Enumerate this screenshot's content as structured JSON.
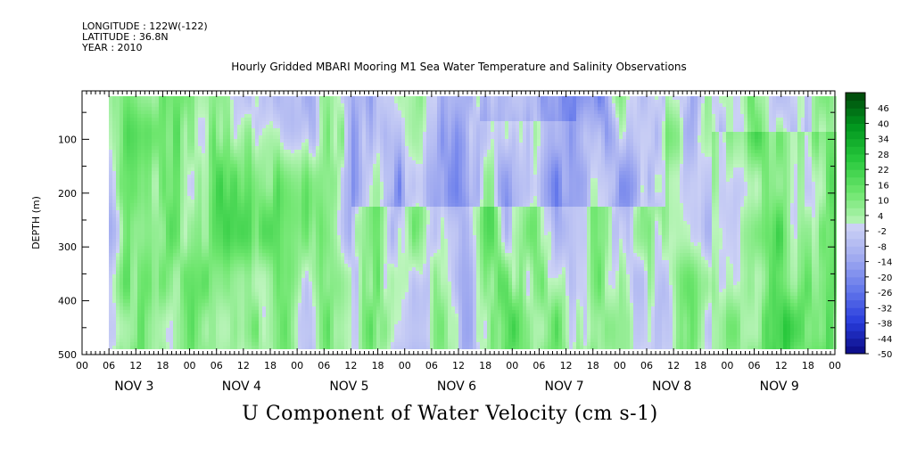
{
  "header": {
    "longitude": "LONGITUDE : 122W(-122)",
    "latitude": "LATITUDE : 36.8N",
    "year": "YEAR : 2010"
  },
  "chart_data": {
    "type": "heatmap",
    "title": "Hourly Gridded MBARI Mooring M1 Sea Water Temperature and Salinity Observations",
    "xlabel": "U Component of Water Velocity (cm s-1)",
    "ylabel": "DEPTH (m)",
    "y_ticks": [
      100,
      200,
      300,
      400,
      500
    ],
    "ylim": [
      500,
      10
    ],
    "data_depth_range": [
      20,
      490
    ],
    "x_hour_ticks": [
      "00",
      "06",
      "12",
      "18",
      "00",
      "06",
      "12",
      "18",
      "00",
      "06",
      "12",
      "18",
      "00",
      "06",
      "12",
      "18",
      "00",
      "06",
      "12",
      "18",
      "00",
      "06",
      "12",
      "18",
      "00",
      "06",
      "12",
      "18",
      "00"
    ],
    "x_day_labels": [
      "NOV  3",
      "NOV  4",
      "NOV  5",
      "NOV  6",
      "NOV  7",
      "NOV  8",
      "NOV  9"
    ],
    "data_start_hour": 6,
    "colorbar": {
      "levels": [
        "46",
        "40",
        "34",
        "28",
        "22",
        "16",
        "10",
        "4",
        "-2",
        "-8",
        "-14",
        "-20",
        "-26",
        "-32",
        "-38",
        "-44",
        "-50"
      ],
      "min": -50,
      "max": 52,
      "step": 3
    },
    "notes": "Dominant values between -20 and +16 cm/s; westward (blue) bands near NOV 6-8 upper layers, eastward (green) near NOV 9."
  }
}
